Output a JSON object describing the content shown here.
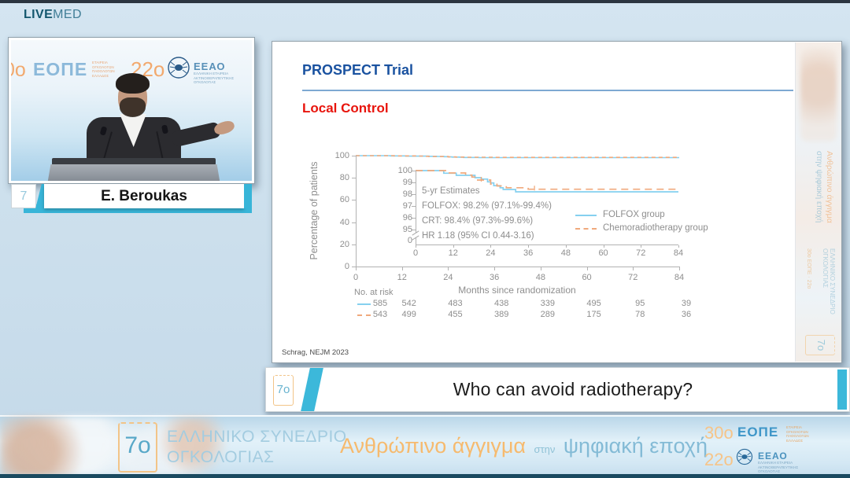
{
  "colors": {
    "accent_cyan": "#38b5d8",
    "folfox": "#85d0ef",
    "crt": "#f0a97c",
    "title_blue": "#1a52a0",
    "subtitle_red": "#e8140c",
    "chart_gray": "#8e8e8e"
  },
  "header": {
    "brand_bold": "LIVE",
    "brand_light": "MED"
  },
  "video": {
    "nameplate": "E. Beroukas",
    "badge": "7",
    "backdrop": {
      "partial_left": "0ο",
      "eope": "ΕΟΠΕ",
      "eope_side": "ΕΤΑΙΡΕΙΑ ΟΓΚΟΛΟΓΩΝ ΠΑΘΟΛΟΓΩΝ ΕΛΛΑΔΟΣ",
      "edition": "22ο",
      "eeao": "ΕΕΑΟ",
      "eeao_side": "ΕΛΛΗΝΙΚΗ ΕΤΑΙΡΕΙΑ ΑΚΤΙΝΟΘΕΡΑΠΕΥΤΙΚΗΣ ΟΓΚΟΛΟΓΙΑΣ"
    }
  },
  "slide": {
    "title": "PROSPECT Trial",
    "subtitle": "Local Control",
    "citation": "Schrag, NEJM 2023"
  },
  "chart_data": {
    "type": "line",
    "subtype": "kaplan-meier-with-inset",
    "main": {
      "ylabel": "Percentage of patients",
      "xlabel": "Months since randomization",
      "yticks": [
        100,
        80,
        60,
        40,
        20,
        0
      ],
      "xticks": [
        0,
        12,
        24,
        36,
        48,
        60,
        72,
        84
      ],
      "ylim": [
        0,
        100
      ],
      "xlim": [
        0,
        84
      ],
      "grid": false
    },
    "inset": {
      "yticks": [
        100,
        99,
        98,
        97,
        96,
        95,
        0
      ],
      "xticks": [
        0,
        12,
        24,
        36,
        48,
        60,
        72,
        84
      ],
      "axis_break": true,
      "annotation": [
        "5-yr Estimates",
        "FOLFOX: 98.2% (97.1%-99.4%)",
        "CRT: 98.4% (97.3%-99.6%)",
        "HR 1.18 (95% CI 0.44-3.16)"
      ]
    },
    "series": [
      {
        "name": "FOLFOX group",
        "style": "solid",
        "color": "#85d0ef",
        "five_yr_estimate": "98.2% (97.1%-99.4%)",
        "steps": [
          [
            0,
            100
          ],
          [
            9,
            100
          ],
          [
            9,
            99.78
          ],
          [
            13,
            99.78
          ],
          [
            13,
            99.6
          ],
          [
            19,
            99.6
          ],
          [
            19,
            99.4
          ],
          [
            21,
            99.4
          ],
          [
            21,
            99.28
          ],
          [
            23,
            99.28
          ],
          [
            23,
            99.05
          ],
          [
            24,
            99.05
          ],
          [
            24,
            98.95
          ],
          [
            25,
            98.95
          ],
          [
            25,
            98.72
          ],
          [
            27,
            98.72
          ],
          [
            27,
            98.55
          ],
          [
            28,
            98.55
          ],
          [
            28,
            98.4
          ],
          [
            32,
            98.4
          ],
          [
            32,
            98.2
          ],
          [
            84,
            98.2
          ]
        ]
      },
      {
        "name": "Chemoradiotherapy group",
        "style": "dashed",
        "color": "#f0a97c",
        "five_yr_estimate": "98.4% (97.3%-99.6%)",
        "steps": [
          [
            0,
            100
          ],
          [
            10,
            100
          ],
          [
            10,
            99.8
          ],
          [
            16,
            99.8
          ],
          [
            16,
            99.62
          ],
          [
            18,
            99.62
          ],
          [
            18,
            99.45
          ],
          [
            19,
            99.45
          ],
          [
            19,
            99.2
          ],
          [
            24,
            99.2
          ],
          [
            24,
            98.85
          ],
          [
            26,
            98.85
          ],
          [
            26,
            98.7
          ],
          [
            29,
            98.7
          ],
          [
            29,
            98.55
          ],
          [
            36,
            98.55
          ],
          [
            36,
            98.42
          ],
          [
            84,
            98.42
          ]
        ]
      }
    ],
    "censor_marks": [
      [
        21,
        99.2
      ],
      [
        38,
        98.45
      ]
    ],
    "hazard_ratio": "HR 1.18 (95% CI 0.44-3.16)",
    "legend": {
      "position": "inset-right",
      "entries": [
        "FOLFOX group",
        "Chemoradiotherapy group"
      ]
    },
    "risk_table": {
      "label": "No. at risk",
      "rows": [
        {
          "series": "FOLFOX group",
          "values": [
            585,
            542,
            483,
            438,
            339,
            495,
            95,
            39
          ]
        },
        {
          "series": "Chemoradiotherapy group",
          "values": [
            543,
            499,
            455,
            389,
            289,
            175,
            78,
            36
          ]
        }
      ]
    }
  },
  "banner": {
    "badge": "7ο",
    "text": "Who can avoid radiotherapy?"
  },
  "footer": {
    "badge": "7ο",
    "congress_line1": "ΕΛΛΗΝΙΚΟ ΣΥΝΕΔΡΙΟ",
    "congress_line2": "ΟΓΚΟΛΟΓΙΑΣ",
    "tagline_orange": "Ανθρώπινο άγγιγμα",
    "tagline_connector": "στην",
    "tagline_teal": "ψηφιακή εποχή",
    "eope_edition": "30ο",
    "eope": "ΕΟΠΕ",
    "eope_side": "ΕΤΑΙΡΕΙΑ ΟΓΚΟΛΟΓΩΝ ΠΑΘΟΛΟΓΩΝ ΕΛΛΑΔΟΣ",
    "eeao_edition": "22ο",
    "eeao": "ΕΕΑΟ",
    "eeao_side": "ΕΛΛΗΝΙΚΗ ΕΤΑΙΡΕΙΑ ΑΚΤΙΝΟΘΕΡΑΠΕΥΤΙΚΗΣ ΟΓΚΟΛΟΓΙΑΣ"
  },
  "side_banner": {
    "tagline_orange": "Ανθρώπινο άγγιγμα",
    "tagline_teal": "στην ψηφιακή εποχή",
    "congress": "ΕΛΛΗΝΙΚΟ ΣΥΝΕΔΡΙΟ ΟΓΚΟΛΟΓΙΑΣ",
    "logos_line": "30ο ΕΟΠΕ · 22ο",
    "badge": "7ο"
  }
}
